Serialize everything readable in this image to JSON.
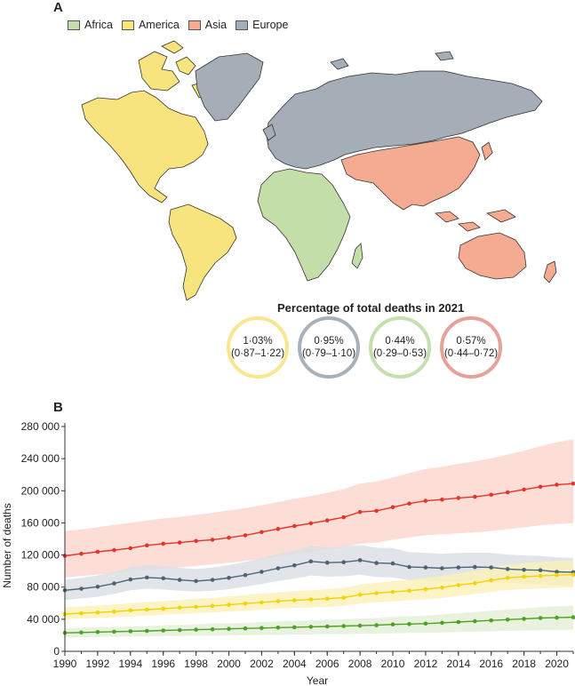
{
  "panel_a": {
    "letter": "A",
    "legend": [
      {
        "label": "Africa",
        "color": "#c4dea9"
      },
      {
        "label": "America",
        "color": "#f8e47e"
      },
      {
        "label": "Asia",
        "color": "#f4ab92"
      },
      {
        "label": "Europe",
        "color": "#a5adb6"
      }
    ],
    "percentage_title": "Percentage of total deaths in 2021",
    "circles": [
      {
        "value": "1·03%",
        "ci": "(0·87–1·22)",
        "color": "#f9e690"
      },
      {
        "value": "0·95%",
        "ci": "(0·79–1·10)",
        "color": "#a8b1b9"
      },
      {
        "value": "0·44%",
        "ci": "(0·29–0·53)",
        "color": "#c6dfaf"
      },
      {
        "value": "0·57%",
        "ci": "(0·44–0·72)",
        "color": "#e6a29a"
      }
    ]
  },
  "panel_b": {
    "letter": "B"
  },
  "chart_data": {
    "type": "line",
    "xlabel": "Year",
    "ylabel": "Number of deaths",
    "xlim": [
      1990,
      2021
    ],
    "ylim": [
      0,
      280000
    ],
    "x_ticks": [
      1990,
      1992,
      1994,
      1996,
      1998,
      2000,
      2002,
      2004,
      2006,
      2008,
      2010,
      2012,
      2014,
      2016,
      2018,
      2020
    ],
    "y_ticks": [
      0,
      40000,
      80000,
      120000,
      160000,
      200000,
      240000,
      280000
    ],
    "y_tick_labels": [
      "0",
      "40 000",
      "80 000",
      "120 000",
      "160 000",
      "200 000",
      "240 000",
      "280 000"
    ],
    "x": [
      1990,
      1991,
      1992,
      1993,
      1994,
      1995,
      1996,
      1997,
      1998,
      1999,
      2000,
      2001,
      2002,
      2003,
      2004,
      2005,
      2006,
      2007,
      2008,
      2009,
      2010,
      2011,
      2012,
      2013,
      2014,
      2015,
      2016,
      2017,
      2018,
      2019,
      2020,
      2021
    ],
    "series": [
      {
        "color": "#e8332a",
        "band_color": "#fbd6cc",
        "values": [
          119000,
          121500,
          124000,
          126000,
          128500,
          132000,
          134000,
          135500,
          137500,
          139000,
          141500,
          144500,
          148500,
          152500,
          156000,
          159500,
          163000,
          167000,
          173500,
          175000,
          179500,
          184000,
          187500,
          189000,
          191000,
          192500,
          195000,
          198000,
          201500,
          205000,
          207500,
          209000
        ],
        "lower": [
          92000,
          94000,
          95500,
          97500,
          99000,
          101000,
          103000,
          104500,
          106500,
          108500,
          110500,
          112500,
          115000,
          118000,
          121000,
          124000,
          126500,
          129500,
          134000,
          135500,
          139000,
          142000,
          144500,
          145500,
          147000,
          148000,
          150000,
          152000,
          154500,
          157000,
          158500,
          159500
        ],
        "upper": [
          150000,
          152000,
          154500,
          157500,
          160000,
          163000,
          165500,
          167500,
          170000,
          172500,
          175500,
          178500,
          182000,
          186000,
          190000,
          193500,
          197500,
          202000,
          209000,
          211500,
          216500,
          222000,
          227000,
          230000,
          233500,
          236500,
          240500,
          245000,
          250000,
          255500,
          260500,
          264000
        ]
      },
      {
        "color": "#4b6472",
        "band_color": "#d9dee3",
        "values": [
          76000,
          78000,
          80500,
          84500,
          89500,
          92000,
          91000,
          89000,
          87500,
          89000,
          91500,
          95000,
          99000,
          103500,
          107000,
          112000,
          110500,
          111000,
          113500,
          110000,
          109500,
          105000,
          104500,
          103500,
          104500,
          105000,
          104500,
          102500,
          101500,
          101000,
          99000,
          98500
        ],
        "lower": [
          64000,
          66000,
          68000,
          71500,
          76000,
          78000,
          77000,
          75500,
          74500,
          75500,
          77500,
          80500,
          84000,
          87500,
          90500,
          94500,
          93000,
          93500,
          95500,
          92500,
          92000,
          88500,
          88000,
          87000,
          87500,
          88000,
          87000,
          85500,
          84500,
          84000,
          82000,
          81000
        ],
        "upper": [
          89000,
          91500,
          94500,
          99000,
          104500,
          107500,
          106500,
          104000,
          102500,
          104500,
          107500,
          111500,
          116000,
          121500,
          125500,
          131000,
          129500,
          130000,
          132500,
          129000,
          128500,
          123500,
          122500,
          121500,
          122500,
          123000,
          122500,
          120500,
          119500,
          119000,
          117000,
          116500
        ]
      },
      {
        "color": "#f2d400",
        "band_color": "#fbf1b8",
        "values": [
          46500,
          47500,
          48500,
          49500,
          51000,
          52000,
          53000,
          54500,
          55500,
          56500,
          58000,
          59500,
          61000,
          62500,
          63500,
          64500,
          65500,
          67000,
          70500,
          72500,
          74000,
          75500,
          77500,
          79500,
          82500,
          85000,
          88500,
          91500,
          93000,
          94000,
          95000,
          95500
        ],
        "lower": [
          40000,
          41000,
          41500,
          42500,
          43500,
          44500,
          45500,
          46500,
          47500,
          48500,
          49500,
          50500,
          52000,
          53000,
          54000,
          54500,
          55500,
          56500,
          59500,
          61000,
          62000,
          63500,
          65000,
          66500,
          69000,
          71000,
          74000,
          76500,
          77500,
          78500,
          79000,
          79500
        ],
        "upper": [
          55000,
          56000,
          57000,
          58500,
          60000,
          61500,
          62500,
          64000,
          65500,
          66500,
          68500,
          70000,
          72000,
          73500,
          75000,
          76000,
          77500,
          79000,
          83000,
          85500,
          87500,
          89000,
          91500,
          94000,
          97500,
          100500,
          104500,
          108000,
          110000,
          111500,
          112500,
          113000
        ]
      },
      {
        "color": "#4ea028",
        "band_color": "#e3efd6",
        "values": [
          23000,
          23500,
          24000,
          24500,
          25000,
          25500,
          26000,
          26500,
          27000,
          27500,
          28000,
          28500,
          29000,
          29500,
          30000,
          30500,
          31000,
          31500,
          32000,
          32500,
          33500,
          34000,
          34500,
          35500,
          36500,
          37500,
          38500,
          39500,
          40500,
          41500,
          42000,
          42500
        ],
        "lower": [
          17000,
          17500,
          18000,
          18000,
          18500,
          18500,
          19000,
          19000,
          19500,
          19500,
          20000,
          20000,
          20500,
          20500,
          21000,
          21000,
          21500,
          21500,
          22000,
          22000,
          22500,
          23000,
          23000,
          23500,
          24000,
          24500,
          25000,
          25500,
          26000,
          26500,
          26500,
          27000
        ],
        "upper": [
          29000,
          29500,
          30000,
          30500,
          31000,
          31500,
          32500,
          33000,
          33500,
          34500,
          35000,
          35500,
          36500,
          37500,
          38000,
          38500,
          39500,
          40000,
          41000,
          41500,
          43000,
          43500,
          44500,
          46000,
          47500,
          49000,
          50500,
          52000,
          53500,
          55000,
          56000,
          57000
        ]
      }
    ]
  }
}
